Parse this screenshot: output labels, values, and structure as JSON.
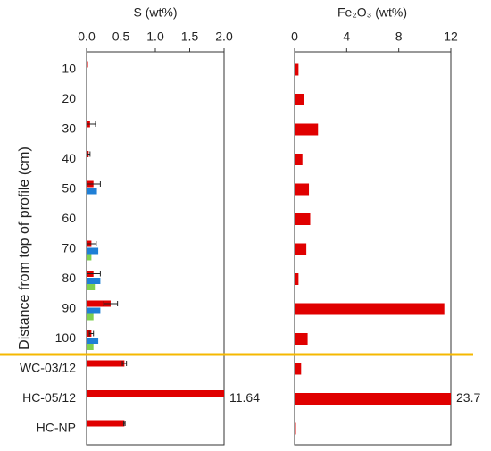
{
  "chart_data": [
    {
      "type": "bar",
      "title": "S (wt%)",
      "ylabel": "Distance from top of profile (cm)",
      "categories": [
        "10",
        "20",
        "30",
        "40",
        "50",
        "60",
        "70",
        "80",
        "90",
        "100",
        "WC-03/12",
        "HC-05/12",
        "HC-NP"
      ],
      "xlim": [
        0,
        2
      ],
      "xticks": [
        {
          "value": 0,
          "label": "0.0"
        },
        0.5,
        {
          "value": 1,
          "label": "1.0"
        },
        1.5,
        {
          "value": 2,
          "label": "2.0"
        }
      ],
      "series": [
        {
          "color": "#e00000",
          "values": [
            0.02,
            0,
            0.05,
            0.03,
            0.1,
            0.01,
            0.07,
            0.1,
            0.35,
            0.07,
            0.55,
            11.64,
            0.55
          ],
          "errors": [
            null,
            null,
            0.08,
            0.02,
            0.1,
            null,
            0.07,
            0.1,
            0.1,
            0.03,
            0.03,
            null,
            0.01
          ],
          "value_labels": [
            null,
            null,
            null,
            null,
            null,
            null,
            null,
            null,
            null,
            null,
            null,
            "11.64",
            null
          ]
        },
        {
          "color": "#1f7fd6",
          "values": [
            null,
            null,
            null,
            null,
            0.15,
            null,
            0.17,
            0.2,
            0.2,
            0.17,
            null,
            null,
            null
          ]
        },
        {
          "color": "#7fd04f",
          "values": [
            null,
            null,
            null,
            null,
            null,
            null,
            0.07,
            0.12,
            0.1,
            0.1,
            null,
            null,
            null
          ]
        }
      ]
    },
    {
      "type": "bar",
      "title": "Fe₂O₃ (wt%)",
      "xlim": [
        0,
        12
      ],
      "xticks": [
        0,
        4,
        8,
        12
      ],
      "color": "#e00000",
      "values": [
        0.3,
        0.7,
        1.8,
        0.6,
        1.1,
        1.2,
        0.9,
        0.3,
        11.5,
        1.0,
        0.5,
        23.7,
        0.1
      ],
      "value_labels": [
        null,
        null,
        null,
        null,
        null,
        null,
        null,
        null,
        null,
        null,
        null,
        "23.7",
        null
      ]
    }
  ]
}
